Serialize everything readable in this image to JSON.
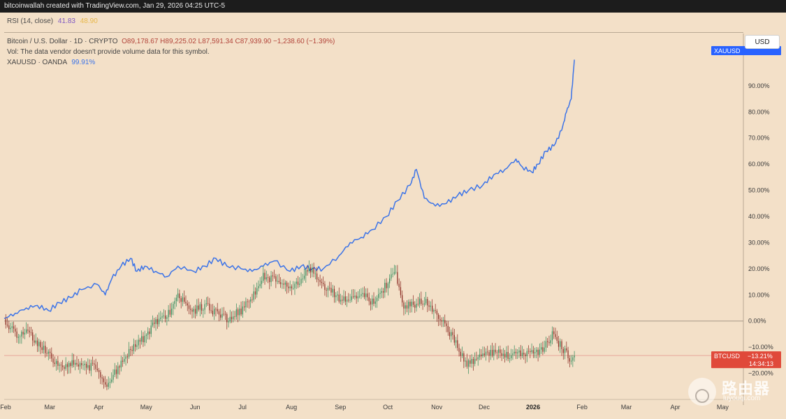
{
  "header": {
    "credit": "bitcoinwallah created with TradingView.com, Jan 29, 2026 04:25 UTC-5"
  },
  "rsi": {
    "label": "RSI (14, close)",
    "value_1": "41.83",
    "value_2": "48.90"
  },
  "legend": {
    "symbol": "Bitcoin / U.S. Dollar · 1D · CRYPTO",
    "ohlc": "O89,178.67  H89,225.02  L87,591.34  C87,939.90  −1,238.60 (−1.39%)",
    "vol_note": "Vol: The data vendor doesn't provide volume data for this symbol.",
    "gold_symbol": "XAUUSD · OANDA",
    "gold_pct": "99.91%"
  },
  "toolbar": {
    "currency_button": "USD"
  },
  "tags": {
    "gold": {
      "name": "XAUUSD",
      "color": "#2962ff"
    },
    "btc": {
      "name": "BTCUSD",
      "value": "−13.21%",
      "countdown": "14:34:13",
      "color": "#e0493a"
    }
  },
  "colors": {
    "gold_line": "#3b73e8",
    "candle_up": "#2f8a5a",
    "candle_down": "#8a2a22",
    "zero_line": "#a69888",
    "btc_line": "#e8a89a",
    "background": "#f3e0c8"
  },
  "watermark": {
    "title": "路由器",
    "url": "luyouqi.com"
  },
  "chart_data": {
    "type": "line",
    "title": "",
    "x_axis": {
      "ticks": [
        "Feb",
        "Mar",
        "Apr",
        "May",
        "Jun",
        "Jul",
        "Aug",
        "Sep",
        "Oct",
        "Nov",
        "Dec",
        "2026",
        "Feb",
        "Mar",
        "Apr",
        "May"
      ],
      "range": [
        "2025-02-01",
        "2026-05-15"
      ]
    },
    "y_axis": {
      "ticks": [
        "90.00%",
        "80.00%",
        "70.00%",
        "60.00%",
        "50.00%",
        "40.00%",
        "30.00%",
        "20.00%",
        "10.00%",
        "0.00%",
        "−10.00%",
        "−20.00%"
      ],
      "range": [
        -30,
        110
      ],
      "unit": "%"
    },
    "series": [
      {
        "name": "XAUUSD",
        "kind": "line",
        "points": [
          [
            "2025-02-01",
            1
          ],
          [
            "2025-02-08",
            3
          ],
          [
            "2025-02-15",
            5
          ],
          [
            "2025-02-22",
            6
          ],
          [
            "2025-03-01",
            4
          ],
          [
            "2025-03-08",
            7
          ],
          [
            "2025-03-15",
            9
          ],
          [
            "2025-03-22",
            12
          ],
          [
            "2025-04-01",
            14
          ],
          [
            "2025-04-06",
            10
          ],
          [
            "2025-04-10",
            16
          ],
          [
            "2025-04-16",
            21
          ],
          [
            "2025-04-22",
            24
          ],
          [
            "2025-04-26",
            19
          ],
          [
            "2025-05-01",
            21
          ],
          [
            "2025-05-08",
            19
          ],
          [
            "2025-05-15",
            17
          ],
          [
            "2025-05-22",
            21
          ],
          [
            "2025-06-01",
            19
          ],
          [
            "2025-06-08",
            21
          ],
          [
            "2025-06-15",
            24
          ],
          [
            "2025-06-22",
            21
          ],
          [
            "2025-07-01",
            20
          ],
          [
            "2025-07-08",
            19
          ],
          [
            "2025-07-15",
            21
          ],
          [
            "2025-07-22",
            23
          ],
          [
            "2025-08-01",
            19
          ],
          [
            "2025-08-08",
            21
          ],
          [
            "2025-08-15",
            20
          ],
          [
            "2025-08-22",
            20
          ],
          [
            "2025-09-01",
            25
          ],
          [
            "2025-09-08",
            30
          ],
          [
            "2025-09-15",
            32
          ],
          [
            "2025-09-22",
            35
          ],
          [
            "2025-10-01",
            40
          ],
          [
            "2025-10-08",
            46
          ],
          [
            "2025-10-16",
            52
          ],
          [
            "2025-10-20",
            58
          ],
          [
            "2025-10-25",
            47
          ],
          [
            "2025-11-01",
            44
          ],
          [
            "2025-11-08",
            45
          ],
          [
            "2025-11-15",
            48
          ],
          [
            "2025-11-22",
            50
          ],
          [
            "2025-12-01",
            52
          ],
          [
            "2025-12-08",
            56
          ],
          [
            "2025-12-15",
            58
          ],
          [
            "2025-12-22",
            62
          ],
          [
            "2025-12-26",
            59
          ],
          [
            "2026-01-01",
            57
          ],
          [
            "2026-01-05",
            60
          ],
          [
            "2026-01-10",
            65
          ],
          [
            "2026-01-15",
            67
          ],
          [
            "2026-01-20",
            73
          ],
          [
            "2026-01-23",
            80
          ],
          [
            "2026-01-26",
            85
          ],
          [
            "2026-01-28",
            100
          ]
        ]
      },
      {
        "name": "BTCUSD",
        "kind": "candles",
        "points": [
          [
            "2025-02-01",
            0
          ],
          [
            "2025-02-08",
            -5
          ],
          [
            "2025-02-15",
            -4
          ],
          [
            "2025-02-22",
            -8
          ],
          [
            "2025-03-01",
            -13
          ],
          [
            "2025-03-08",
            -18
          ],
          [
            "2025-03-15",
            -16
          ],
          [
            "2025-03-22",
            -17
          ],
          [
            "2025-04-01",
            -18
          ],
          [
            "2025-04-07",
            -25
          ],
          [
            "2025-04-14",
            -18
          ],
          [
            "2025-04-21",
            -12
          ],
          [
            "2025-05-01",
            -6
          ],
          [
            "2025-05-08",
            0
          ],
          [
            "2025-05-15",
            2
          ],
          [
            "2025-05-22",
            9
          ],
          [
            "2025-06-01",
            4
          ],
          [
            "2025-06-08",
            6
          ],
          [
            "2025-06-15",
            3
          ],
          [
            "2025-06-22",
            1
          ],
          [
            "2025-07-01",
            4
          ],
          [
            "2025-07-08",
            9
          ],
          [
            "2025-07-15",
            17
          ],
          [
            "2025-07-22",
            16
          ],
          [
            "2025-08-01",
            13
          ],
          [
            "2025-08-08",
            16
          ],
          [
            "2025-08-14",
            20
          ],
          [
            "2025-08-22",
            14
          ],
          [
            "2025-09-01",
            9
          ],
          [
            "2025-09-08",
            8
          ],
          [
            "2025-09-15",
            11
          ],
          [
            "2025-09-22",
            7
          ],
          [
            "2025-10-01",
            14
          ],
          [
            "2025-10-06",
            20
          ],
          [
            "2025-10-11",
            6
          ],
          [
            "2025-10-18",
            6
          ],
          [
            "2025-10-25",
            8
          ],
          [
            "2025-11-01",
            4
          ],
          [
            "2025-11-08",
            -2
          ],
          [
            "2025-11-15",
            -10
          ],
          [
            "2025-11-21",
            -17
          ],
          [
            "2025-12-01",
            -13
          ],
          [
            "2025-12-08",
            -12
          ],
          [
            "2025-12-15",
            -13
          ],
          [
            "2025-12-22",
            -13
          ],
          [
            "2026-01-01",
            -12
          ],
          [
            "2026-01-08",
            -11
          ],
          [
            "2026-01-14",
            -5
          ],
          [
            "2026-01-20",
            -10
          ],
          [
            "2026-01-25",
            -14
          ],
          [
            "2026-01-28",
            -13.21
          ]
        ]
      }
    ],
    "reference_lines": [
      {
        "y": 0,
        "label": "0.00%"
      },
      {
        "y": -13.21,
        "series": "BTCUSD"
      }
    ],
    "grid": false,
    "legend_position": "top-left"
  }
}
